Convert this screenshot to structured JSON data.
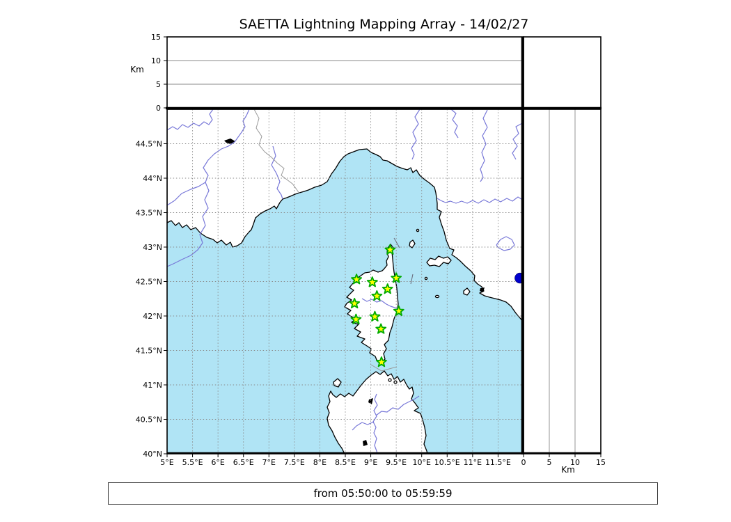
{
  "title": "SAETTA Lightning Mapping Array - 14/02/27",
  "footer": {
    "time_range": "from 05:50:00 to 05:59:59"
  },
  "altitude_axis": {
    "label": "Km",
    "ticks": [
      {
        "value": 0,
        "label": "0"
      },
      {
        "value": 5,
        "label": "5"
      },
      {
        "value": 10,
        "label": "10"
      },
      {
        "value": 15,
        "label": "15"
      }
    ],
    "range": [
      0,
      15
    ]
  },
  "map": {
    "lon_range": [
      5,
      12
    ],
    "lat_range": [
      40,
      45
    ],
    "lon_ticks": [
      {
        "value": 5,
        "label": "5°E"
      },
      {
        "value": 5.5,
        "label": "5.5°E"
      },
      {
        "value": 6,
        "label": "6°E"
      },
      {
        "value": 6.5,
        "label": "6.5°E"
      },
      {
        "value": 7,
        "label": "7°E"
      },
      {
        "value": 7.5,
        "label": "7.5°E"
      },
      {
        "value": 8,
        "label": "8°E"
      },
      {
        "value": 8.5,
        "label": "8.5°E"
      },
      {
        "value": 9,
        "label": "9°E"
      },
      {
        "value": 9.5,
        "label": "9.5°E"
      },
      {
        "value": 10,
        "label": "10°E"
      },
      {
        "value": 10.5,
        "label": "10.5°E"
      },
      {
        "value": 11,
        "label": "11°E"
      },
      {
        "value": 11.5,
        "label": "11.5°E"
      }
    ],
    "lat_ticks": [
      {
        "value": 40,
        "label": "40°N"
      },
      {
        "value": 40.5,
        "label": "40.5°N"
      },
      {
        "value": 41,
        "label": "41°N"
      },
      {
        "value": 41.5,
        "label": "41.5°N"
      },
      {
        "value": 42,
        "label": "42°N"
      },
      {
        "value": 42.5,
        "label": "42.5°N"
      },
      {
        "value": 43,
        "label": "43°N"
      },
      {
        "value": 43.5,
        "label": "43.5°N"
      },
      {
        "value": 44,
        "label": "44°N"
      },
      {
        "value": 44.5,
        "label": "44.5°N"
      }
    ],
    "stations": [
      {
        "lon": 9.38,
        "lat": 42.96
      },
      {
        "lon": 8.72,
        "lat": 42.53
      },
      {
        "lon": 9.03,
        "lat": 42.49
      },
      {
        "lon": 9.5,
        "lat": 42.55
      },
      {
        "lon": 9.33,
        "lat": 42.39
      },
      {
        "lon": 9.12,
        "lat": 42.29
      },
      {
        "lon": 8.68,
        "lat": 42.18
      },
      {
        "lon": 9.55,
        "lat": 42.07
      },
      {
        "lon": 8.71,
        "lat": 41.95
      },
      {
        "lon": 9.08,
        "lat": 41.99
      },
      {
        "lon": 9.2,
        "lat": 41.81
      },
      {
        "lon": 9.21,
        "lat": 41.33
      }
    ],
    "lightning_source": {
      "lon": 11.93,
      "lat": 42.55
    }
  },
  "colors": {
    "sea": "#b0e4f5",
    "land": "#ffffff",
    "river": "#7878d8",
    "coast": "#000000",
    "grid": "#8a8a8a",
    "boundary": "#999999",
    "station_fill": "#ffff00",
    "station_stroke": "#00aa00",
    "source_dot": "#0000cc"
  }
}
